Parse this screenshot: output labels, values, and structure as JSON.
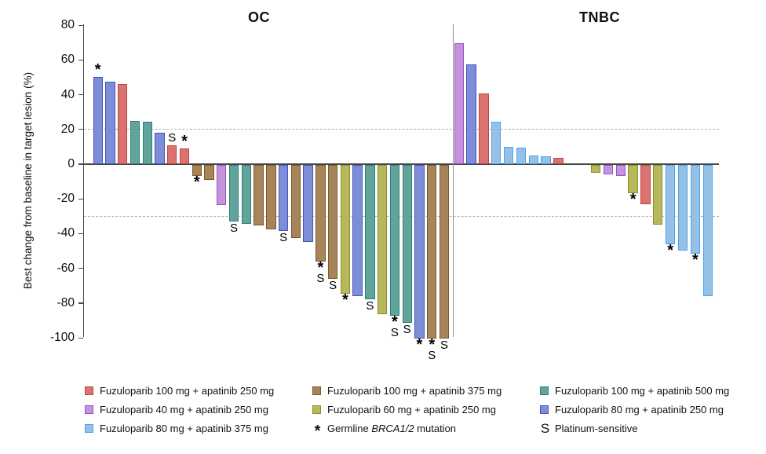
{
  "chart_data": {
    "type": "bar",
    "subtype": "waterfall",
    "title": "",
    "ylabel": "Best change from baseline in target lesion (%)",
    "xlabel": "",
    "ylim": [
      -100,
      80
    ],
    "yticks": [
      80,
      60,
      40,
      20,
      0,
      -20,
      -40,
      -60,
      -80,
      -100
    ],
    "reference_lines": [
      20,
      -30
    ],
    "grid": "off",
    "legend_position": "bottom",
    "mark_meanings": {
      "*": "Germline BRCA1/2 mutation",
      "S": "Platinum-sensitive"
    },
    "panels": [
      {
        "title": "OC",
        "bars": [
          {
            "value": 50,
            "color": "blue",
            "marks": [
              "*"
            ]
          },
          {
            "value": 47.5,
            "color": "blue",
            "marks": []
          },
          {
            "value": 46,
            "color": "red",
            "marks": []
          },
          {
            "value": 25,
            "color": "teal",
            "marks": []
          },
          {
            "value": 24.5,
            "color": "teal",
            "marks": []
          },
          {
            "value": 18,
            "color": "blue",
            "marks": []
          },
          {
            "value": 11,
            "color": "red",
            "marks": [
              "S"
            ]
          },
          {
            "value": 9,
            "color": "red",
            "marks": [
              "*"
            ]
          },
          {
            "value": -6.5,
            "color": "brown",
            "marks": [
              "*"
            ]
          },
          {
            "value": -8.5,
            "color": "brown",
            "marks": []
          },
          {
            "value": -23,
            "color": "purple",
            "marks": []
          },
          {
            "value": -32.5,
            "color": "teal",
            "marks": [
              "S"
            ]
          },
          {
            "value": -34,
            "color": "teal",
            "marks": []
          },
          {
            "value": -35,
            "color": "brown",
            "marks": []
          },
          {
            "value": -37,
            "color": "brown",
            "marks": []
          },
          {
            "value": -38,
            "color": "blue",
            "marks": [
              "S"
            ]
          },
          {
            "value": -42,
            "color": "brown",
            "marks": []
          },
          {
            "value": -44.5,
            "color": "blue",
            "marks": []
          },
          {
            "value": -55.5,
            "color": "brown",
            "marks": [
              "*",
              "S"
            ]
          },
          {
            "value": -65.5,
            "color": "brown",
            "marks": [
              "S"
            ]
          },
          {
            "value": -74,
            "color": "ygreen",
            "marks": [
              "*"
            ]
          },
          {
            "value": -75.5,
            "color": "blue",
            "marks": []
          },
          {
            "value": -77.5,
            "color": "teal",
            "marks": [
              "S"
            ]
          },
          {
            "value": -86,
            "color": "ygreen",
            "marks": []
          },
          {
            "value": -87,
            "color": "teal",
            "marks": [
              "*",
              "S"
            ]
          },
          {
            "value": -91,
            "color": "teal",
            "marks": [
              "S"
            ]
          },
          {
            "value": -100,
            "color": "blue",
            "marks": [
              "*"
            ]
          },
          {
            "value": -100,
            "color": "brown",
            "marks": [
              "*",
              "S"
            ]
          },
          {
            "value": -100,
            "color": "brown",
            "marks": [
              "S"
            ]
          }
        ]
      },
      {
        "title": "TNBC",
        "bars": [
          {
            "value": 69.5,
            "color": "purple",
            "marks": []
          },
          {
            "value": 57.5,
            "color": "blue",
            "marks": []
          },
          {
            "value": 40.5,
            "color": "red",
            "marks": []
          },
          {
            "value": 24.5,
            "color": "lightblue",
            "marks": []
          },
          {
            "value": 10,
            "color": "lightblue",
            "marks": []
          },
          {
            "value": 9.5,
            "color": "lightblue",
            "marks": []
          },
          {
            "value": 5,
            "color": "lightblue",
            "marks": []
          },
          {
            "value": 4.5,
            "color": "lightblue",
            "marks": []
          },
          {
            "value": 3.5,
            "color": "red",
            "marks": []
          },
          {
            "value": null,
            "color": "",
            "marks": []
          },
          {
            "value": null,
            "color": "",
            "marks": []
          },
          {
            "value": -4.5,
            "color": "ygreen",
            "marks": []
          },
          {
            "value": -5.5,
            "color": "purple",
            "marks": []
          },
          {
            "value": -6.5,
            "color": "purple",
            "marks": []
          },
          {
            "value": -16.5,
            "color": "ygreen",
            "marks": [
              "*"
            ]
          },
          {
            "value": -22.5,
            "color": "red",
            "marks": []
          },
          {
            "value": -34.5,
            "color": "ygreen",
            "marks": []
          },
          {
            "value": -45.5,
            "color": "lightblue",
            "marks": [
              "*"
            ]
          },
          {
            "value": -49.5,
            "color": "lightblue",
            "marks": []
          },
          {
            "value": -51,
            "color": "lightblue",
            "marks": [
              "*"
            ]
          },
          {
            "value": -75.5,
            "color": "lightblue",
            "marks": []
          }
        ]
      }
    ]
  },
  "colors": {
    "red": {
      "fill": "#DA7370",
      "stroke": "#BD4742"
    },
    "purple": {
      "fill": "#C493DC",
      "stroke": "#9B51C4"
    },
    "lightblue": {
      "fill": "#96C1E7",
      "stroke": "#4FA2E8"
    },
    "brown": {
      "fill": "#A8845B",
      "stroke": "#7B5A26"
    },
    "ygreen": {
      "fill": "#B7B85C",
      "stroke": "#879325"
    },
    "teal": {
      "fill": "#62A49B",
      "stroke": "#2B8277"
    },
    "blue": {
      "fill": "#7D8DD7",
      "stroke": "#4156BE"
    },
    "axis": "#4a4a4a",
    "dashed_line": "#b0b0b0",
    "separator": "#8f8f8f"
  },
  "legend": {
    "columns": [
      [
        {
          "swatch": "red",
          "label": "Fuzuloparib 100 mg + apatinib 250 mg"
        },
        {
          "swatch": "purple",
          "label": "Fuzuloparib 40 mg + apatinib 250 mg"
        },
        {
          "swatch": "lightblue",
          "label": "Fuzuloparib 80 mg + apatinib 375 mg"
        }
      ],
      [
        {
          "swatch": "brown",
          "label": "Fuzuloparib 100 mg + apatinib 375 mg"
        },
        {
          "swatch": "ygreen",
          "label": "Fuzuloparib 60 mg + apatinib 250 mg"
        },
        {
          "symbol": "*",
          "label": "Germline BRCA1/2 mutation",
          "italic": "BRCA1/2"
        }
      ],
      [
        {
          "swatch": "teal",
          "label": "Fuzuloparib 100 mg + apatinib 500 mg"
        },
        {
          "swatch": "blue",
          "label": "Fuzuloparib 80 mg + apatinib 250 mg"
        },
        {
          "symbol": "S",
          "label": "Platinum-sensitive"
        }
      ]
    ]
  }
}
